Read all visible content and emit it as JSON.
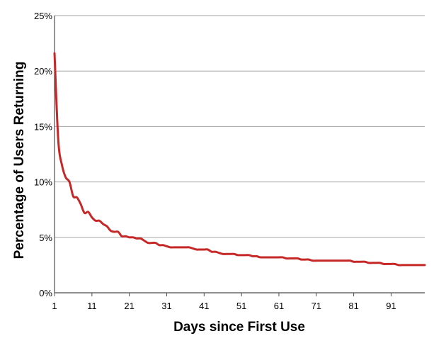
{
  "chart_data": {
    "type": "line",
    "title": "",
    "xlabel": "Days since First Use",
    "ylabel": "Percentage of Users Returning",
    "xlim": [
      1,
      100
    ],
    "ylim": [
      0,
      25
    ],
    "x_ticks": [
      1,
      11,
      21,
      31,
      41,
      51,
      61,
      71,
      81,
      91
    ],
    "x_tick_labels": [
      "1",
      "11",
      "21",
      "31",
      "41",
      "51",
      "61",
      "71",
      "81",
      "91"
    ],
    "y_ticks": [
      0,
      5,
      10,
      15,
      20,
      25
    ],
    "y_tick_labels": [
      "0%",
      "5%",
      "10%",
      "15%",
      "20%",
      "25%"
    ],
    "grid": "horizontal",
    "line_color": "#c62828",
    "series": [
      {
        "x": [
          1,
          2,
          3,
          4,
          5,
          6,
          7,
          8,
          9,
          10,
          11,
          12,
          13,
          14,
          15,
          16,
          17,
          18,
          19,
          20,
          21,
          22,
          23,
          24,
          25,
          26,
          27,
          28,
          29,
          30,
          31,
          32,
          33,
          34,
          35,
          36,
          37,
          38,
          39,
          40,
          41,
          42,
          43,
          44,
          45,
          46,
          47,
          48,
          49,
          50,
          51,
          52,
          53,
          54,
          55,
          56,
          57,
          58,
          59,
          60,
          61,
          62,
          63,
          64,
          65,
          66,
          67,
          68,
          69,
          70,
          71,
          72,
          73,
          74,
          75,
          76,
          77,
          78,
          79,
          80,
          81,
          82,
          83,
          84,
          85,
          86,
          87,
          88,
          89,
          90,
          91,
          92,
          93,
          94,
          95,
          96,
          97,
          98,
          99,
          100
        ],
        "values": [
          21.6,
          13.8,
          11.5,
          10.4,
          10.0,
          8.7,
          8.6,
          8.0,
          7.2,
          7.3,
          6.8,
          6.5,
          6.5,
          6.2,
          6.0,
          5.6,
          5.5,
          5.5,
          5.1,
          5.1,
          5.0,
          5.0,
          4.9,
          4.9,
          4.7,
          4.5,
          4.5,
          4.5,
          4.3,
          4.3,
          4.2,
          4.1,
          4.1,
          4.1,
          4.1,
          4.1,
          4.1,
          4.0,
          3.9,
          3.9,
          3.9,
          3.9,
          3.7,
          3.7,
          3.6,
          3.5,
          3.5,
          3.5,
          3.5,
          3.4,
          3.4,
          3.4,
          3.4,
          3.3,
          3.3,
          3.2,
          3.2,
          3.2,
          3.2,
          3.2,
          3.2,
          3.2,
          3.1,
          3.1,
          3.1,
          3.1,
          3.0,
          3.0,
          3.0,
          2.9,
          2.9,
          2.9,
          2.9,
          2.9,
          2.9,
          2.9,
          2.9,
          2.9,
          2.9,
          2.9,
          2.8,
          2.8,
          2.8,
          2.8,
          2.7,
          2.7,
          2.7,
          2.7,
          2.6,
          2.6,
          2.6,
          2.6,
          2.5,
          2.5,
          2.5,
          2.5,
          2.5,
          2.5,
          2.5,
          2.5
        ]
      }
    ]
  }
}
